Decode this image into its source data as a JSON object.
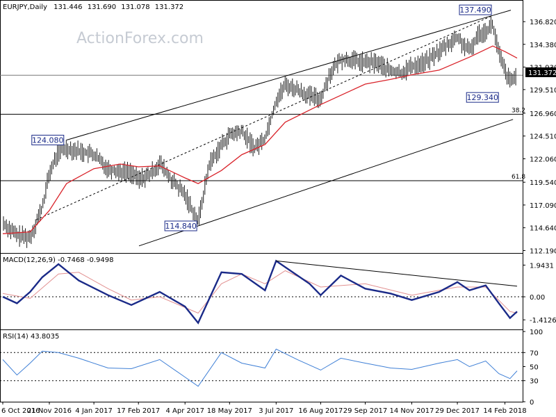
{
  "chart_data": {
    "type": "ohlc",
    "symbol": "EURJPY",
    "timeframe": "Daily",
    "ohlc_readout": [
      "131.446",
      "131.690",
      "131.078",
      "131.372"
    ],
    "watermark": "ActionForex.com",
    "price_axis": {
      "ylim": [
        112.0,
        139.0
      ],
      "ticks": [
        "136.820",
        "134.380",
        "131.930",
        "129.510",
        "126.960",
        "124.510",
        "122.060",
        "119.540",
        "117.090",
        "114.640",
        "112.190"
      ],
      "last_price": "131.372"
    },
    "x_ticks": [
      "6 Oct 2016",
      "21 Nov 2016",
      "4 Jan 2017",
      "17 Feb 2017",
      "4 Apr 2017",
      "18 May 2017",
      "3 Jul 2017",
      "16 Aug 2017",
      "29 Sep 2017",
      "14 Nov 2017",
      "29 Dec 2017",
      "14 Feb 2018"
    ],
    "annotations": [
      {
        "label": "137.490",
        "date": "2 Feb 2018",
        "value": 137.49
      },
      {
        "label": "124.080",
        "date": "8 Dec 2016",
        "value": 124.08
      },
      {
        "label": "114.840",
        "date": "17 Apr 2017",
        "value": 114.84
      },
      {
        "label": "129.340",
        "date": "9 Feb 2018",
        "value": 129.34
      }
    ],
    "fibonacci_levels": [
      {
        "label": "38.2",
        "value": 126.86
      },
      {
        "label": "61.8",
        "value": 119.7
      }
    ],
    "horizontal_level": 131.05,
    "trend_channel": {
      "upper": [
        [
          "8 Dec 2016",
          124.08
        ],
        [
          "2 Feb 2018",
          137.49
        ]
      ],
      "lower": [
        [
          "17 Apr 2017",
          114.84
        ],
        [
          "22 Feb 2018",
          126.3
        ]
      ],
      "middle": [
        [
          "8 Nov 2016",
          115.5
        ],
        [
          "2 Feb 2018",
          137.49
        ]
      ]
    },
    "price_series": [
      {
        "x": "6 Oct 2016",
        "y": 115.2
      },
      {
        "x": "20 Oct 2016",
        "y": 113.8
      },
      {
        "x": "2 Nov 2016",
        "y": 113.6
      },
      {
        "x": "14 Nov 2016",
        "y": 116.8
      },
      {
        "x": "21 Nov 2016",
        "y": 120.5
      },
      {
        "x": "30 Nov 2016",
        "y": 122.8
      },
      {
        "x": "8 Dec 2016",
        "y": 123.2
      },
      {
        "x": "20 Dec 2016",
        "y": 122.9
      },
      {
        "x": "4 Jan 2017",
        "y": 122.5
      },
      {
        "x": "18 Jan 2017",
        "y": 121.0
      },
      {
        "x": "30 Jan 2017",
        "y": 120.7
      },
      {
        "x": "10 Feb 2017",
        "y": 120.6
      },
      {
        "x": "17 Feb 2017",
        "y": 119.8
      },
      {
        "x": "1 Mar 2017",
        "y": 120.4
      },
      {
        "x": "10 Mar 2017",
        "y": 121.6
      },
      {
        "x": "22 Mar 2017",
        "y": 119.7
      },
      {
        "x": "4 Apr 2017",
        "y": 118.2
      },
      {
        "x": "17 Apr 2017",
        "y": 115.3
      },
      {
        "x": "28 Apr 2017",
        "y": 121.5
      },
      {
        "x": "10 May 2017",
        "y": 123.5
      },
      {
        "x": "18 May 2017",
        "y": 124.6
      },
      {
        "x": "30 May 2017",
        "y": 125.0
      },
      {
        "x": "12 Jun 2017",
        "y": 123.2
      },
      {
        "x": "22 Jun 2017",
        "y": 124.3
      },
      {
        "x": "3 Jul 2017",
        "y": 128.3
      },
      {
        "x": "12 Jul 2017",
        "y": 130.0
      },
      {
        "x": "24 Jul 2017",
        "y": 129.5
      },
      {
        "x": "5 Aug 2017",
        "y": 128.8
      },
      {
        "x": "16 Aug 2017",
        "y": 128.5
      },
      {
        "x": "25 Aug 2017",
        "y": 131.2
      },
      {
        "x": "5 Sep 2017",
        "y": 132.8
      },
      {
        "x": "18 Sep 2017",
        "y": 132.6
      },
      {
        "x": "29 Sep 2017",
        "y": 132.4
      },
      {
        "x": "11 Oct 2017",
        "y": 132.4
      },
      {
        "x": "24 Oct 2017",
        "y": 131.5
      },
      {
        "x": "3 Nov 2017",
        "y": 131.3
      },
      {
        "x": "14 Nov 2017",
        "y": 132.0
      },
      {
        "x": "28 Nov 2017",
        "y": 132.5
      },
      {
        "x": "11 Dec 2017",
        "y": 133.6
      },
      {
        "x": "20 Dec 2017",
        "y": 134.4
      },
      {
        "x": "29 Dec 2017",
        "y": 135.1
      },
      {
        "x": "10 Jan 2018",
        "y": 133.6
      },
      {
        "x": "19 Jan 2018",
        "y": 135.5
      },
      {
        "x": "26 Jan 2018",
        "y": 135.8
      },
      {
        "x": "2 Feb 2018",
        "y": 136.5
      },
      {
        "x": "8 Feb 2018",
        "y": 133.4
      },
      {
        "x": "14 Feb 2018",
        "y": 131.5
      },
      {
        "x": "19 Feb 2018",
        "y": 130.4
      },
      {
        "x": "22 Feb 2018",
        "y": 130.5
      },
      {
        "x": "26 Feb 2018",
        "y": 131.4
      }
    ],
    "moving_average": [
      {
        "x": "6 Oct 2016",
        "y": 114.0
      },
      {
        "x": "2 Nov 2016",
        "y": 114.2
      },
      {
        "x": "21 Nov 2016",
        "y": 116.5
      },
      {
        "x": "8 Dec 2016",
        "y": 119.4
      },
      {
        "x": "4 Jan 2017",
        "y": 121.0
      },
      {
        "x": "30 Jan 2017",
        "y": 121.5
      },
      {
        "x": "17 Feb 2017",
        "y": 121.2
      },
      {
        "x": "10 Mar 2017",
        "y": 121.3
      },
      {
        "x": "4 Apr 2017",
        "y": 120.0
      },
      {
        "x": "17 Apr 2017",
        "y": 119.4
      },
      {
        "x": "10 May 2017",
        "y": 120.8
      },
      {
        "x": "30 May 2017",
        "y": 122.5
      },
      {
        "x": "22 Jun 2017",
        "y": 123.6
      },
      {
        "x": "12 Jul 2017",
        "y": 126.0
      },
      {
        "x": "16 Aug 2017",
        "y": 127.9
      },
      {
        "x": "29 Sep 2017",
        "y": 130.1
      },
      {
        "x": "24 Oct 2017",
        "y": 130.6
      },
      {
        "x": "14 Nov 2017",
        "y": 131.1
      },
      {
        "x": "11 Dec 2017",
        "y": 131.6
      },
      {
        "x": "10 Jan 2018",
        "y": 133.0
      },
      {
        "x": "2 Feb 2018",
        "y": 134.2
      },
      {
        "x": "14 Feb 2018",
        "y": 133.6
      },
      {
        "x": "26 Feb 2018",
        "y": 132.9
      }
    ],
    "macd": {
      "label": "MACD(12,26,9) -0.7468 -0.9498",
      "ticks": [
        "1.9431",
        "0.00",
        "-1.4126"
      ],
      "ylim": [
        -2.0,
        2.6
      ],
      "zero": 0.0,
      "macd_line": [
        {
          "x": "6 Oct 2016",
          "y": 0.0
        },
        {
          "x": "20 Oct 2016",
          "y": -0.4
        },
        {
          "x": "2 Nov 2016",
          "y": 0.3
        },
        {
          "x": "14 Nov 2016",
          "y": 1.2
        },
        {
          "x": "30 Nov 2016",
          "y": 2.0
        },
        {
          "x": "20 Dec 2016",
          "y": 1.0
        },
        {
          "x": "18 Jan 2017",
          "y": 0.1
        },
        {
          "x": "10 Feb 2017",
          "y": -0.5
        },
        {
          "x": "10 Mar 2017",
          "y": 0.3
        },
        {
          "x": "4 Apr 2017",
          "y": -0.6
        },
        {
          "x": "17 Apr 2017",
          "y": -1.6
        },
        {
          "x": "10 May 2017",
          "y": 1.5
        },
        {
          "x": "30 May 2017",
          "y": 1.4
        },
        {
          "x": "22 Jun 2017",
          "y": 0.4
        },
        {
          "x": "3 Jul 2017",
          "y": 2.2
        },
        {
          "x": "5 Aug 2017",
          "y": 0.8
        },
        {
          "x": "16 Aug 2017",
          "y": 0.1
        },
        {
          "x": "5 Sep 2017",
          "y": 1.3
        },
        {
          "x": "29 Sep 2017",
          "y": 0.5
        },
        {
          "x": "24 Oct 2017",
          "y": 0.2
        },
        {
          "x": "14 Nov 2017",
          "y": -0.2
        },
        {
          "x": "11 Dec 2017",
          "y": 0.3
        },
        {
          "x": "29 Dec 2017",
          "y": 0.9
        },
        {
          "x": "10 Jan 2018",
          "y": 0.4
        },
        {
          "x": "26 Jan 2018",
          "y": 0.7
        },
        {
          "x": "8 Feb 2018",
          "y": -0.4
        },
        {
          "x": "19 Feb 2018",
          "y": -1.3
        },
        {
          "x": "26 Feb 2018",
          "y": -0.9
        }
      ],
      "signal_line": [
        {
          "x": "6 Oct 2016",
          "y": 0.2
        },
        {
          "x": "2 Nov 2016",
          "y": -0.1
        },
        {
          "x": "30 Nov 2016",
          "y": 1.4
        },
        {
          "x": "20 Dec 2016",
          "y": 1.5
        },
        {
          "x": "18 Jan 2017",
          "y": 0.5
        },
        {
          "x": "10 Feb 2017",
          "y": -0.2
        },
        {
          "x": "10 Mar 2017",
          "y": 0.0
        },
        {
          "x": "17 Apr 2017",
          "y": -1.0
        },
        {
          "x": "10 May 2017",
          "y": 0.8
        },
        {
          "x": "30 May 2017",
          "y": 1.4
        },
        {
          "x": "22 Jun 2017",
          "y": 0.8
        },
        {
          "x": "12 Jul 2017",
          "y": 1.6
        },
        {
          "x": "16 Aug 2017",
          "y": 0.6
        },
        {
          "x": "29 Sep 2017",
          "y": 0.8
        },
        {
          "x": "14 Nov 2017",
          "y": 0.1
        },
        {
          "x": "29 Dec 2017",
          "y": 0.6
        },
        {
          "x": "26 Jan 2018",
          "y": 0.6
        },
        {
          "x": "19 Feb 2018",
          "y": -0.9
        },
        {
          "x": "26 Feb 2018",
          "y": -1.0
        }
      ],
      "trend_line": [
        [
          "3 Jul 2017",
          2.2
        ],
        [
          "26 Feb 2018",
          0.65
        ]
      ]
    },
    "rsi": {
      "label": "RSI(14) 43.8035",
      "ticks": [
        "100",
        "70",
        "50",
        "30",
        "0"
      ],
      "ylim": [
        0,
        100
      ],
      "levels": [
        70,
        30
      ],
      "values": [
        {
          "x": "6 Oct 2016",
          "y": 60
        },
        {
          "x": "20 Oct 2016",
          "y": 38
        },
        {
          "x": "2 Nov 2016",
          "y": 55
        },
        {
          "x": "14 Nov 2016",
          "y": 72
        },
        {
          "x": "30 Nov 2016",
          "y": 70
        },
        {
          "x": "20 Dec 2016",
          "y": 62
        },
        {
          "x": "18 Jan 2017",
          "y": 48
        },
        {
          "x": "10 Feb 2017",
          "y": 47
        },
        {
          "x": "10 Mar 2017",
          "y": 60
        },
        {
          "x": "4 Apr 2017",
          "y": 35
        },
        {
          "x": "17 Apr 2017",
          "y": 22
        },
        {
          "x": "10 May 2017",
          "y": 70
        },
        {
          "x": "30 May 2017",
          "y": 55
        },
        {
          "x": "22 Jun 2017",
          "y": 48
        },
        {
          "x": "3 Jul 2017",
          "y": 75
        },
        {
          "x": "24 Jul 2017",
          "y": 60
        },
        {
          "x": "16 Aug 2017",
          "y": 45
        },
        {
          "x": "5 Sep 2017",
          "y": 62
        },
        {
          "x": "29 Sep 2017",
          "y": 55
        },
        {
          "x": "24 Oct 2017",
          "y": 48
        },
        {
          "x": "14 Nov 2017",
          "y": 46
        },
        {
          "x": "11 Dec 2017",
          "y": 55
        },
        {
          "x": "29 Dec 2017",
          "y": 60
        },
        {
          "x": "10 Jan 2018",
          "y": 50
        },
        {
          "x": "26 Jan 2018",
          "y": 58
        },
        {
          "x": "8 Feb 2018",
          "y": 40
        },
        {
          "x": "19 Feb 2018",
          "y": 33
        },
        {
          "x": "26 Feb 2018",
          "y": 44
        }
      ]
    },
    "colors": {
      "bars": "#1a1a1a",
      "moving_average": "#d9232a",
      "macd_line": "#1a2a88",
      "signal_line": "#e29090",
      "rsi_line": "#3e7fd6",
      "channel": "#000000",
      "levels": "#000000",
      "annotation_box": "#1a2a88",
      "watermark": "#c6cbd3"
    }
  }
}
